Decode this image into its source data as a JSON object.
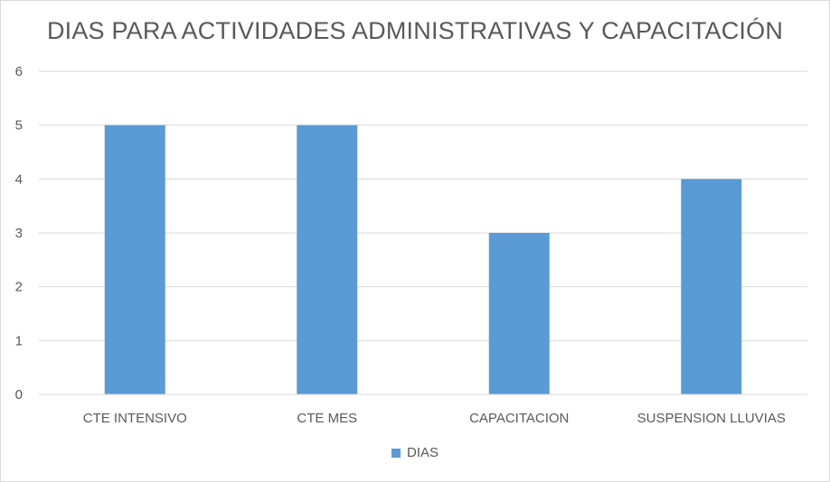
{
  "chart_data": {
    "type": "bar",
    "title": "DIAS PARA ACTIVIDADES ADMINISTRATIVAS Y CAPACITACIÓN",
    "categories": [
      "CTE INTENSIVO",
      "CTE MES",
      "CAPACITACION",
      "SUSPENSION LLUVIAS"
    ],
    "series": [
      {
        "name": "DIAS",
        "values": [
          5,
          5,
          3,
          4
        ],
        "color": "#5b9bd5"
      }
    ],
    "xlabel": "",
    "ylabel": "",
    "ylim": [
      0,
      6
    ],
    "yticks": [
      "0",
      "1",
      "2",
      "3",
      "4",
      "5",
      "6"
    ],
    "grid": true,
    "legend_position": "bottom"
  }
}
